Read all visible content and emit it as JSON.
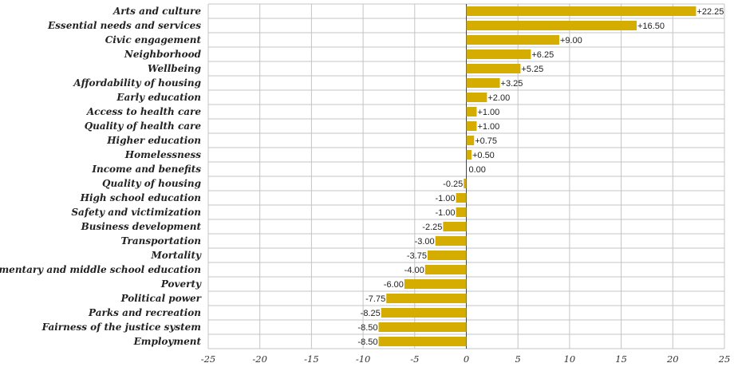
{
  "chart_data": {
    "type": "bar",
    "orientation": "horizontal",
    "title": "",
    "xlabel": "",
    "ylabel": "",
    "xlim": [
      -25,
      25
    ],
    "x_ticks": [
      -25,
      -20,
      -15,
      -10,
      -5,
      0,
      5,
      10,
      15,
      20,
      25
    ],
    "grid": true,
    "legend": "none",
    "bar_color": "#d4ad00",
    "categories": [
      "Arts and culture",
      "Essential needs and services",
      "Civic engagement",
      "Neighborhood",
      "Wellbeing",
      "Affordability of housing",
      "Early education",
      "Access to health care",
      "Quality of health care",
      "Higher education",
      "Homelessness",
      "Income and benefits",
      "Quality of housing",
      "High school education",
      "Safety and victimization",
      "Business development",
      "Transportation",
      "Mortality",
      "Elementary and middle school education",
      "Poverty",
      "Political power",
      "Parks and recreation",
      "Fairness of the justice system",
      "Employment"
    ],
    "values": [
      22.25,
      16.5,
      9.0,
      6.25,
      5.25,
      3.25,
      2.0,
      1.0,
      1.0,
      0.75,
      0.5,
      0.0,
      -0.25,
      -1.0,
      -1.0,
      -2.25,
      -3.0,
      -3.75,
      -4.0,
      -6.0,
      -7.75,
      -8.25,
      -8.5,
      -8.5
    ],
    "value_labels": [
      "+22.25",
      "+16.50",
      "+9.00",
      "+6.25",
      "+5.25",
      "+3.25",
      "+2.00",
      "+1.00",
      "+1.00",
      "+0.75",
      "+0.50",
      "0.00",
      "-0.25",
      "-1.00",
      "-1.00",
      "-2.25",
      "-3.00",
      "-3.75",
      "-4.00",
      "-6.00",
      "-7.75",
      "-8.25",
      "-8.50",
      "-8.50"
    ]
  }
}
